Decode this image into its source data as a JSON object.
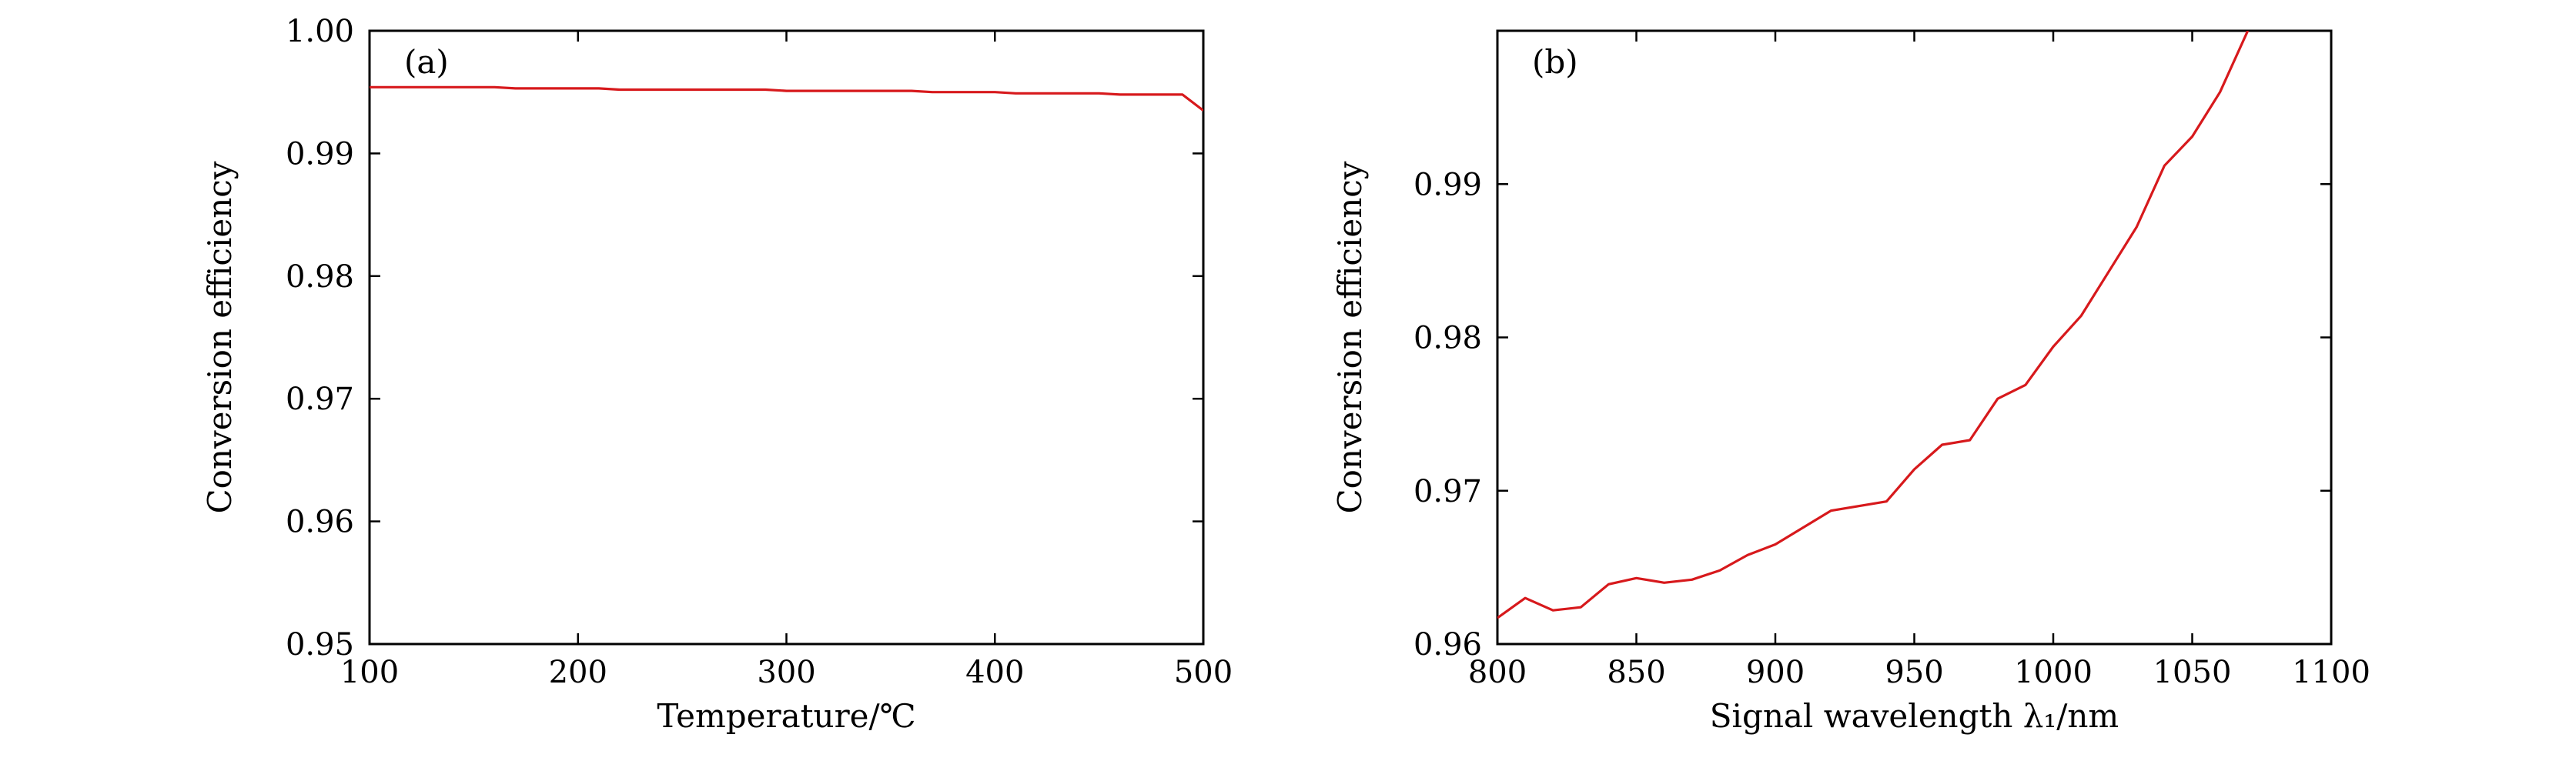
{
  "chart_data": [
    {
      "type": "line",
      "panel_label": "(a)",
      "title": "",
      "xlabel": "Temperature/℃",
      "ylabel": "Conversion efficiency",
      "xlim": [
        100,
        500
      ],
      "ylim": [
        0.95,
        1.0
      ],
      "xticks": [
        100,
        200,
        300,
        400,
        500
      ],
      "xtick_labels": [
        "100",
        "200",
        "300",
        "400",
        "500"
      ],
      "yticks": [
        0.95,
        0.96,
        0.97,
        0.98,
        0.99,
        1.0
      ],
      "ytick_labels": [
        "0.95",
        "0.96",
        "0.97",
        "0.98",
        "0.99",
        "1.00"
      ],
      "grid": false,
      "series": [
        {
          "color": "#d7191c",
          "x": [
            100,
            160,
            170,
            210,
            220,
            290,
            300,
            360,
            370,
            400,
            410,
            450,
            460,
            490,
            500
          ],
          "y": [
            0.9954,
            0.9954,
            0.9953,
            0.9953,
            0.9952,
            0.9952,
            0.9951,
            0.9951,
            0.995,
            0.995,
            0.9949,
            0.9949,
            0.9948,
            0.9948,
            0.9935
          ]
        }
      ]
    },
    {
      "type": "line",
      "panel_label": "(b)",
      "title": "",
      "xlabel": "Signal wavelength λ₁/nm",
      "ylabel": "Conversion efficiency",
      "xlim": [
        800,
        1100
      ],
      "ylim": [
        0.96,
        1.0
      ],
      "xticks": [
        800,
        850,
        900,
        950,
        1000,
        1050,
        1100
      ],
      "xtick_labels": [
        "800",
        "850",
        "900",
        "950",
        "1000",
        "1050",
        "1100"
      ],
      "yticks": [
        0.96,
        0.97,
        0.98,
        0.99
      ],
      "ytick_labels": [
        "0.96",
        "0.97",
        "0.98",
        "0.99"
      ],
      "grid": false,
      "series": [
        {
          "color": "#d7191c",
          "x": [
            800,
            810,
            820,
            830,
            840,
            850,
            860,
            870,
            880,
            890,
            900,
            910,
            920,
            930,
            940,
            950,
            960,
            970,
            980,
            990,
            1000,
            1010,
            1020,
            1030,
            1040,
            1050,
            1060,
            1070
          ],
          "y": [
            0.9617,
            0.963,
            0.9622,
            0.9624,
            0.9639,
            0.9643,
            0.964,
            0.9642,
            0.9648,
            0.9658,
            0.9665,
            0.9676,
            0.9687,
            0.969,
            0.9693,
            0.9714,
            0.973,
            0.9733,
            0.976,
            0.9769,
            0.9794,
            0.9814,
            0.9843,
            0.9872,
            0.9912,
            0.9931,
            0.996,
            1.0
          ]
        }
      ]
    }
  ]
}
